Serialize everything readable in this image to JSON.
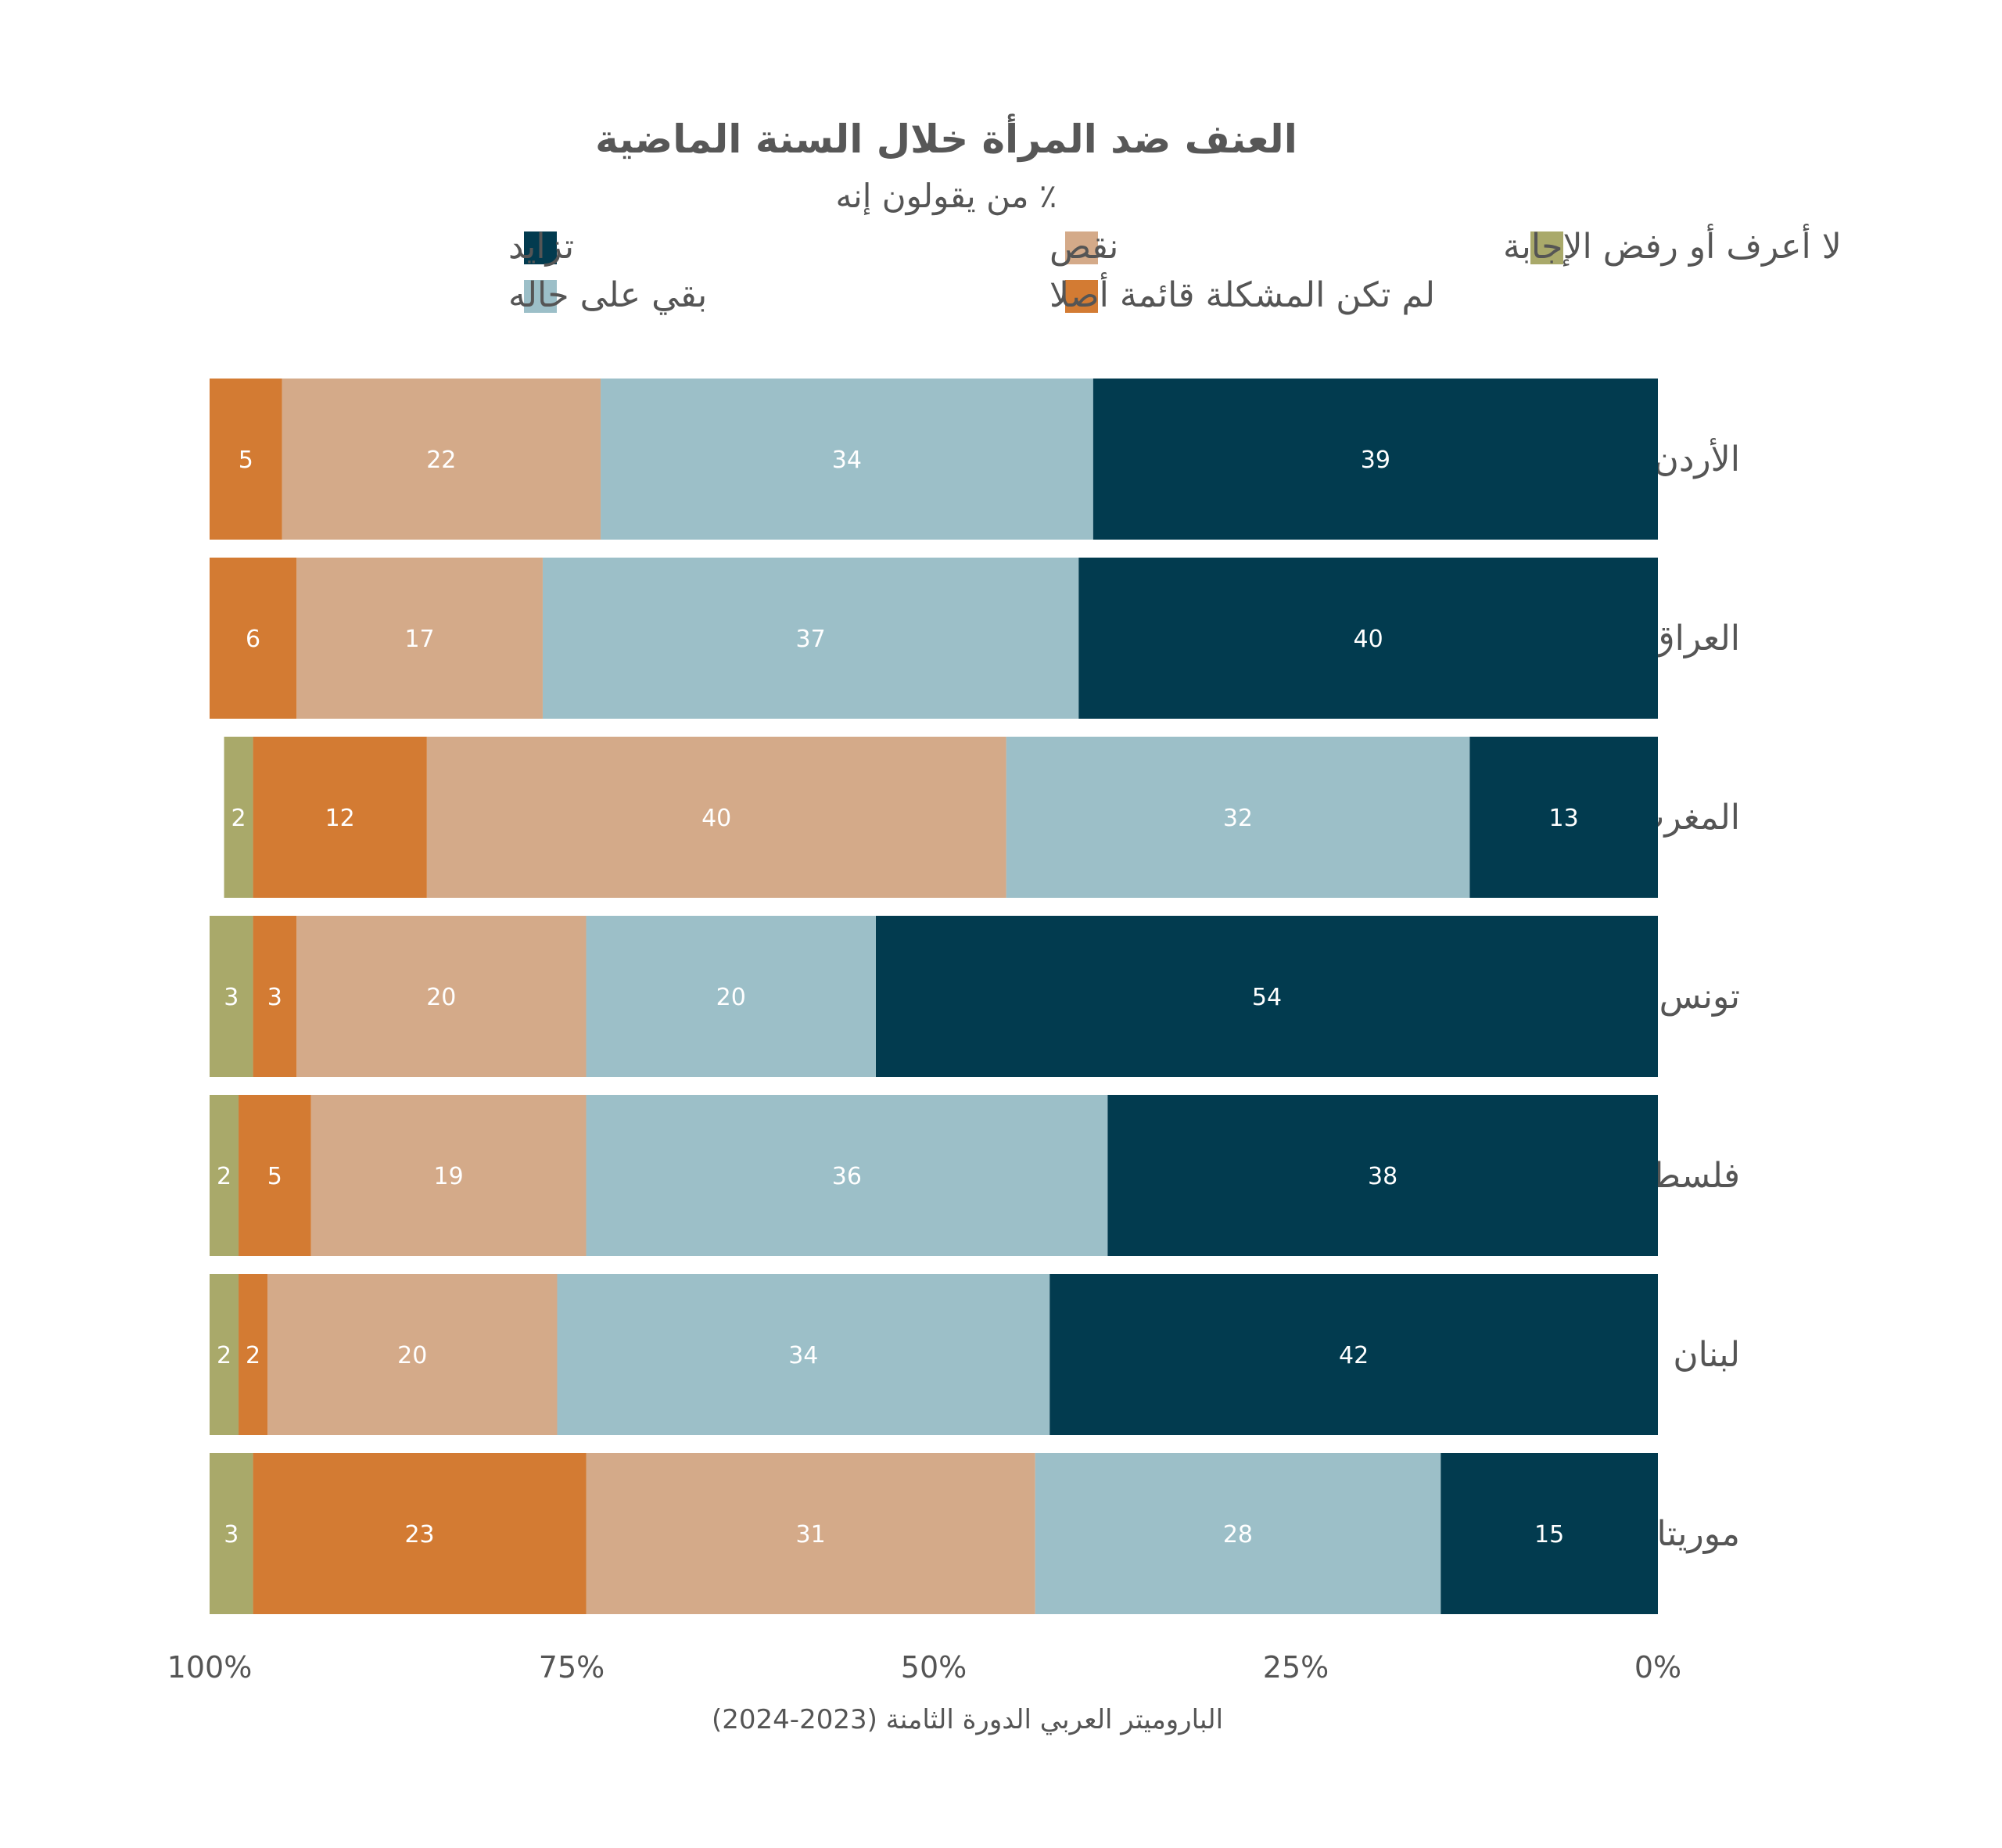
{
  "chart_data": {
    "type": "bar",
    "orientation": "horizontal-stacked",
    "title": "العنف ضد المرأة خلال السنة الماضية",
    "subtitle": "٪ من يقولون إنه",
    "categories": [
      "الأردن",
      "العراق",
      "المغرب",
      "تونس",
      "فلسطين",
      "لبنان",
      "موريتانيا"
    ],
    "series": [
      {
        "name": "تزايد",
        "color": "#023b4f",
        "values": [
          39,
          40,
          13,
          54,
          38,
          42,
          15
        ]
      },
      {
        "name": "بقي على حاله",
        "color": "#9cbfc8",
        "values": [
          34,
          37,
          32,
          20,
          36,
          34,
          28
        ]
      },
      {
        "name": "نقص",
        "color": "#d4aa89",
        "values": [
          22,
          17,
          40,
          20,
          19,
          20,
          31
        ]
      },
      {
        "name": "لم تكن المشكلة قائمة أصلا",
        "color": "#d37b33",
        "values": [
          5,
          6,
          12,
          3,
          5,
          2,
          23
        ]
      },
      {
        "name": "لا أعرف أو رفض الإجابة",
        "color": "#a9a96a",
        "values": [
          1,
          0,
          2,
          3,
          2,
          2,
          3
        ]
      }
    ],
    "value_labels_shown": [
      [
        true,
        true,
        true,
        true,
        false
      ],
      [
        true,
        true,
        true,
        true,
        false
      ],
      [
        true,
        true,
        true,
        true,
        true
      ],
      [
        true,
        true,
        true,
        true,
        true
      ],
      [
        true,
        true,
        true,
        true,
        true
      ],
      [
        true,
        true,
        true,
        true,
        true
      ],
      [
        true,
        true,
        true,
        true,
        true
      ]
    ],
    "x_ticks": [
      "100%",
      "75%",
      "50%",
      "25%",
      "0%"
    ],
    "xlim": [
      0,
      100
    ],
    "x_direction": "right-to-left",
    "grid": false,
    "legend_placement": "top"
  },
  "source": "الباروميتر العربي الدورة الثامنة (2023-2024)"
}
